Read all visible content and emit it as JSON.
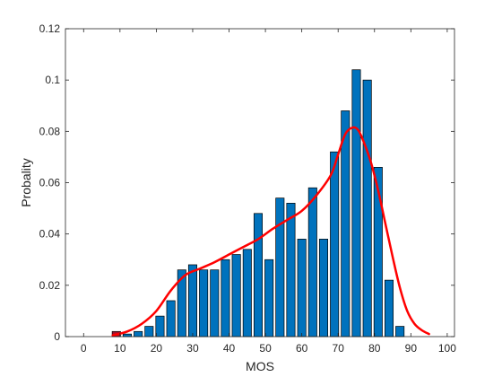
{
  "chart_data": {
    "type": "bar",
    "xlabel": "MOS",
    "ylabel": "Probality",
    "xlim": [
      -5,
      102
    ],
    "ylim": [
      0,
      0.12
    ],
    "grid": false,
    "bar_width": 2.3,
    "colors": {
      "bar": "#0072BD",
      "highlight_bar": "#A2142F",
      "edge": "#000000",
      "density": "#FF0000",
      "axis": "#262626"
    },
    "xticks": [
      {
        "value": 0,
        "label": "0"
      },
      {
        "value": 10,
        "label": "10"
      },
      {
        "value": 20,
        "label": "20"
      },
      {
        "value": 30,
        "label": "30"
      },
      {
        "value": 40,
        "label": "40"
      },
      {
        "value": 50,
        "label": "50"
      },
      {
        "value": 60,
        "label": "60"
      },
      {
        "value": 70,
        "label": "70"
      },
      {
        "value": 80,
        "label": "80"
      },
      {
        "value": 90,
        "label": "90"
      },
      {
        "value": 100,
        "label": "100"
      }
    ],
    "yticks": [
      {
        "value": 0,
        "label": "0"
      },
      {
        "value": 0.02,
        "label": "0.02"
      },
      {
        "value": 0.04,
        "label": "0.04"
      },
      {
        "value": 0.06,
        "label": "0.06"
      },
      {
        "value": 0.08,
        "label": "0.08"
      },
      {
        "value": 0.1,
        "label": "0.1"
      },
      {
        "value": 0.12,
        "label": "0.12"
      }
    ],
    "bars": {
      "x": [
        9,
        12,
        15,
        18,
        21,
        24,
        27,
        30,
        33,
        36,
        39,
        42,
        45,
        48,
        51,
        54,
        57,
        60,
        63,
        66,
        69,
        72,
        75,
        78,
        81,
        84,
        87
      ],
      "values": [
        0.002,
        0.001,
        0.002,
        0.004,
        0.008,
        0.014,
        0.026,
        0.028,
        0.026,
        0.026,
        0.03,
        0.032,
        0.034,
        0.048,
        0.03,
        0.054,
        0.052,
        0.038,
        0.058,
        0.038,
        0.072,
        0.088,
        0.104,
        0.1,
        0.066,
        0.022,
        0.004
      ],
      "highlight_index": 0
    },
    "density_line": {
      "x": [
        8,
        12,
        16,
        20,
        24,
        28,
        32,
        36,
        40,
        44,
        48,
        52,
        56,
        60,
        64,
        68,
        70,
        72,
        74,
        75.5,
        77,
        79,
        81,
        83,
        85,
        87,
        89,
        91,
        93,
        95
      ],
      "y": [
        0.0005,
        0.002,
        0.005,
        0.01,
        0.018,
        0.024,
        0.0265,
        0.029,
        0.032,
        0.035,
        0.038,
        0.042,
        0.0455,
        0.049,
        0.055,
        0.063,
        0.071,
        0.079,
        0.0815,
        0.0805,
        0.076,
        0.068,
        0.057,
        0.044,
        0.031,
        0.019,
        0.01,
        0.005,
        0.0025,
        0.001
      ]
    }
  }
}
